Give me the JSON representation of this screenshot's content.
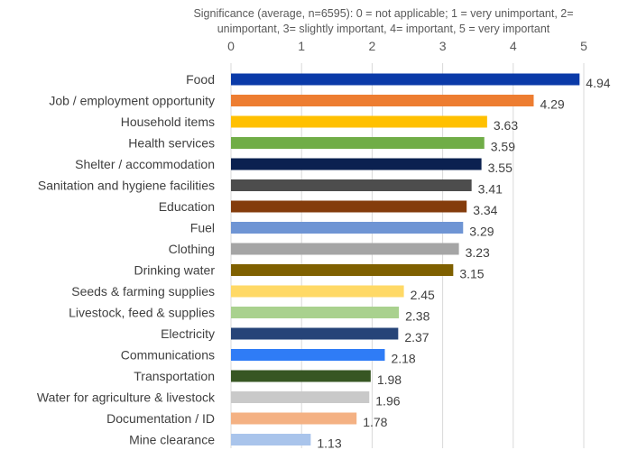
{
  "chart_data": {
    "type": "bar",
    "orientation": "horizontal",
    "title": "",
    "xlabel_lines": [
      "Significance (average, n=6595): 0 = not applicable; 1 = very unimportant, 2=",
      "unimportant, 3= slightly important, 4= important, 5 = very important"
    ],
    "ylabel": "",
    "xlim": [
      0,
      5
    ],
    "xticks": [
      "0",
      "1",
      "2",
      "3",
      "4",
      "5"
    ],
    "grid": true,
    "legend": "none",
    "categories": [
      "Food",
      "Job / employment opportunity",
      "Household items",
      "Health services",
      "Shelter / accommodation",
      "Sanitation and hygiene facilities",
      "Education",
      "Fuel",
      "Clothing",
      "Drinking water",
      "Seeds & farming supplies",
      "Livestock, feed & supplies",
      "Electricity",
      "Communications",
      "Transportation",
      "Water for agriculture & livestock",
      "Documentation / ID",
      "Mine clearance"
    ],
    "values": [
      4.94,
      4.29,
      3.63,
      3.59,
      3.55,
      3.41,
      3.34,
      3.29,
      3.23,
      3.15,
      2.45,
      2.38,
      2.37,
      2.18,
      1.98,
      1.96,
      1.78,
      1.13
    ],
    "labels": [
      "4.94",
      "4.29",
      "3.63",
      "3.59",
      "3.55",
      "3.41",
      "3.34",
      "3.29",
      "3.23",
      "3.15",
      "2.45",
      "2.38",
      "2.37",
      "2.18",
      "1.98",
      "1.96",
      "1.78",
      "1.13"
    ],
    "colors": [
      "#0a3aa8",
      "#ed7d31",
      "#ffc000",
      "#70ad47",
      "#0b2150",
      "#4d4d4d",
      "#843c0c",
      "#6f95d4",
      "#a5a5a5",
      "#7f6000",
      "#ffd966",
      "#a9d18e",
      "#264478",
      "#2f7cf6",
      "#375623",
      "#c9c9c9",
      "#f4b183",
      "#a9c4eb"
    ]
  }
}
